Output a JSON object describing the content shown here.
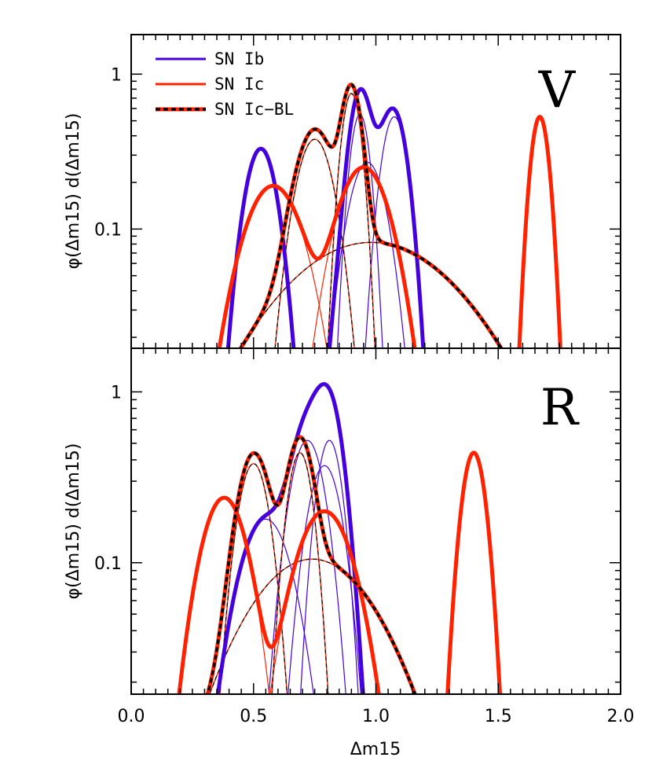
{
  "chart_data": {
    "type": "line",
    "title": "",
    "xlabel": "Δm15",
    "ylabel": "φ(Δm15) d(Δm15)",
    "x_axis": {
      "range": [
        0.0,
        2.0
      ],
      "tick_labels": [
        "0.0",
        "0.5",
        "1.0",
        "1.5",
        "2.0"
      ],
      "tick_values": [
        0.0,
        0.5,
        1.0,
        1.5,
        2.0
      ],
      "scale": "linear"
    },
    "legend": {
      "placement": "top-left",
      "entries": [
        {
          "label": "SN Ib",
          "color": "#4400dd",
          "style": "solid"
        },
        {
          "label": "SN Ic",
          "color": "#ff2200",
          "style": "solid"
        },
        {
          "label": "SN Ic−BL",
          "color": "#ff2200",
          "style": "dashed-black-over-red"
        }
      ]
    },
    "colors": {
      "ib": "#4400dd",
      "ic": "#ff2200",
      "dash": "#000000"
    },
    "panels": [
      {
        "band": "V",
        "yscale": "log",
        "ylim": [
          0.017,
          1.8
        ],
        "y_tick_labels": [
          "0.1",
          "1"
        ],
        "y_tick_values": [
          0.1,
          1
        ],
        "ib_components": [
          {
            "mu": 0.53,
            "sigma": 0.055,
            "amp": 0.33
          },
          {
            "mu": 0.935,
            "sigma": 0.035,
            "amp": 0.55
          },
          {
            "mu": 0.965,
            "sigma": 0.065,
            "amp": 0.27
          },
          {
            "mu": 1.075,
            "sigma": 0.045,
            "amp": 0.53
          }
        ],
        "ic_components": [
          {
            "mu": 0.58,
            "sigma": 0.1,
            "amp": 0.19
          },
          {
            "mu": 0.95,
            "sigma": 0.09,
            "amp": 0.25
          },
          {
            "mu": 1.67,
            "sigma": 0.032,
            "amp": 0.53
          }
        ],
        "icbl_components": [
          {
            "mu": 0.75,
            "sigma": 0.065,
            "amp": 0.38
          },
          {
            "mu": 0.9,
            "sigma": 0.035,
            "amp": 0.75
          },
          {
            "mu": 0.98,
            "sigma": 0.3,
            "amp": 0.082
          }
        ]
      },
      {
        "band": "R",
        "yscale": "log",
        "ylim": [
          0.017,
          1.8
        ],
        "y_tick_labels": [
          "0.1",
          "1"
        ],
        "y_tick_values": [
          0.1,
          1
        ],
        "ib_components": [
          {
            "mu": 0.55,
            "sigma": 0.09,
            "amp": 0.18
          },
          {
            "mu": 0.72,
            "sigma": 0.06,
            "amp": 0.52
          },
          {
            "mu": 0.79,
            "sigma": 0.06,
            "amp": 0.37
          },
          {
            "mu": 0.81,
            "sigma": 0.045,
            "amp": 0.52
          }
        ],
        "ic_components": [
          {
            "mu": 0.38,
            "sigma": 0.08,
            "amp": 0.24
          },
          {
            "mu": 0.79,
            "sigma": 0.1,
            "amp": 0.2
          },
          {
            "mu": 1.4,
            "sigma": 0.042,
            "amp": 0.44
          }
        ],
        "icbl_components": [
          {
            "mu": 0.5,
            "sigma": 0.055,
            "amp": 0.38
          },
          {
            "mu": 0.69,
            "sigma": 0.045,
            "amp": 0.44
          },
          {
            "mu": 0.74,
            "sigma": 0.22,
            "amp": 0.105
          }
        ]
      }
    ]
  }
}
